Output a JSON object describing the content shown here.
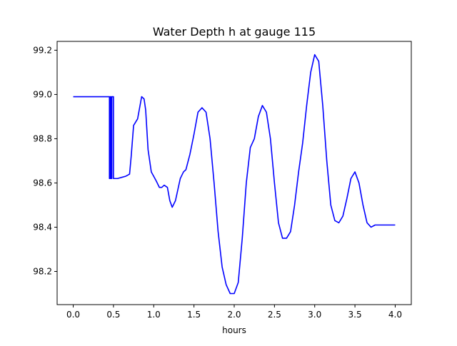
{
  "chart_data": {
    "type": "line",
    "title": "Water Depth h at gauge 115",
    "xlabel": "hours",
    "ylabel": "",
    "xlim": [
      -0.2,
      4.2
    ],
    "ylim": [
      98.05,
      99.24
    ],
    "xticks": [
      0.0,
      0.5,
      1.0,
      1.5,
      2.0,
      2.5,
      3.0,
      3.5,
      4.0
    ],
    "xtick_labels": [
      "0.0",
      "0.5",
      "1.0",
      "1.5",
      "2.0",
      "2.5",
      "3.0",
      "3.5",
      "4.0"
    ],
    "yticks": [
      98.2,
      98.4,
      98.6,
      98.8,
      99.0,
      99.2
    ],
    "ytick_labels": [
      "98.2",
      "98.4",
      "98.6",
      "98.8",
      "99.0",
      "99.2"
    ],
    "grid": false,
    "legend": "none",
    "series": [
      {
        "color": "#0000ff",
        "x": [
          0.0,
          0.2,
          0.4,
          0.45,
          0.45,
          0.46,
          0.46,
          0.47,
          0.47,
          0.48,
          0.48,
          0.5,
          0.5,
          0.55,
          0.6,
          0.65,
          0.7,
          0.72,
          0.75,
          0.8,
          0.82,
          0.85,
          0.88,
          0.9,
          0.93,
          0.97,
          1.0,
          1.03,
          1.07,
          1.1,
          1.13,
          1.17,
          1.2,
          1.23,
          1.27,
          1.3,
          1.33,
          1.37,
          1.4,
          1.45,
          1.5,
          1.55,
          1.6,
          1.65,
          1.7,
          1.75,
          1.8,
          1.85,
          1.9,
          1.95,
          2.0,
          2.05,
          2.1,
          2.15,
          2.2,
          2.25,
          2.3,
          2.35,
          2.4,
          2.45,
          2.5,
          2.55,
          2.6,
          2.65,
          2.7,
          2.75,
          2.8,
          2.85,
          2.9,
          2.95,
          3.0,
          3.05,
          3.1,
          3.15,
          3.2,
          3.25,
          3.3,
          3.35,
          3.4,
          3.45,
          3.5,
          3.55,
          3.6,
          3.65,
          3.7,
          3.75,
          3.8,
          3.85,
          3.9,
          3.95,
          4.0
        ],
        "y": [
          98.99,
          98.99,
          98.99,
          98.99,
          98.62,
          98.62,
          98.99,
          98.99,
          98.62,
          98.62,
          98.99,
          98.99,
          98.62,
          98.62,
          98.625,
          98.63,
          98.64,
          98.72,
          98.86,
          98.89,
          98.93,
          98.99,
          98.98,
          98.93,
          98.75,
          98.65,
          98.63,
          98.61,
          98.58,
          98.58,
          98.59,
          98.58,
          98.52,
          98.49,
          98.52,
          98.57,
          98.62,
          98.65,
          98.66,
          98.73,
          98.82,
          98.92,
          98.94,
          98.92,
          98.8,
          98.6,
          98.38,
          98.22,
          98.14,
          98.1,
          98.1,
          98.15,
          98.35,
          98.6,
          98.76,
          98.8,
          98.9,
          98.95,
          98.92,
          98.8,
          98.6,
          98.42,
          98.35,
          98.35,
          98.38,
          98.5,
          98.65,
          98.78,
          98.95,
          99.1,
          99.18,
          99.15,
          98.95,
          98.7,
          98.5,
          98.43,
          98.42,
          98.45,
          98.53,
          98.62,
          98.65,
          98.6,
          98.5,
          98.42,
          98.4,
          98.41,
          98.41,
          98.41,
          98.41,
          98.41,
          98.41
        ]
      }
    ]
  }
}
